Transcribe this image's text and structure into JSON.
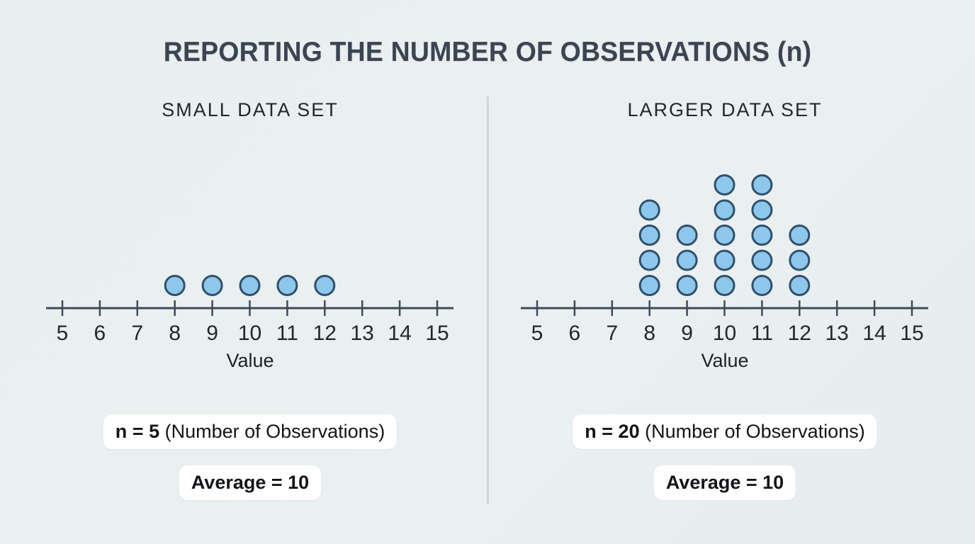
{
  "title": "REPORTING THE NUMBER OF OBSERVATIONS (n)",
  "colors": {
    "background": "#E9EEEF",
    "title_text": "#3B4552",
    "divider": "#CFD4D6",
    "axis": "#3D4B59",
    "tick_label": "#23272C",
    "dot_fill": "#8DC8EC",
    "dot_stroke": "#30506C",
    "pill_background": "#FFFFFF",
    "pill_text": "#121417"
  },
  "chart_data": [
    {
      "type": "scatter",
      "subtype": "dot_plot",
      "title": "SMALL DATA SET",
      "xlabel": "Value",
      "x_ticks": [
        5,
        6,
        7,
        8,
        9,
        10,
        11,
        12,
        13,
        14,
        15
      ],
      "xlim": [
        5,
        15
      ],
      "grid": false,
      "counts": {
        "8": 1,
        "9": 1,
        "10": 1,
        "11": 1,
        "12": 1
      },
      "data_values": [
        8,
        9,
        10,
        11,
        12
      ],
      "n": 5,
      "average": 10,
      "n_label_bold": "n = 5",
      "n_label_rest": " (Number of Observations)",
      "average_label": "Average = 10"
    },
    {
      "type": "scatter",
      "subtype": "dot_plot",
      "title": "LARGER DATA SET",
      "xlabel": "Value",
      "x_ticks": [
        5,
        6,
        7,
        8,
        9,
        10,
        11,
        12,
        13,
        14,
        15
      ],
      "xlim": [
        5,
        15
      ],
      "grid": false,
      "counts": {
        "8": 4,
        "9": 3,
        "10": 5,
        "11": 5,
        "12": 3
      },
      "data_values": [
        8,
        8,
        8,
        8,
        9,
        9,
        9,
        10,
        10,
        10,
        10,
        10,
        11,
        11,
        11,
        11,
        11,
        12,
        12,
        12
      ],
      "n": 20,
      "average": 10,
      "n_label_bold": "n = 20",
      "n_label_rest": " (Number of Observations)",
      "average_label": "Average = 10"
    }
  ]
}
